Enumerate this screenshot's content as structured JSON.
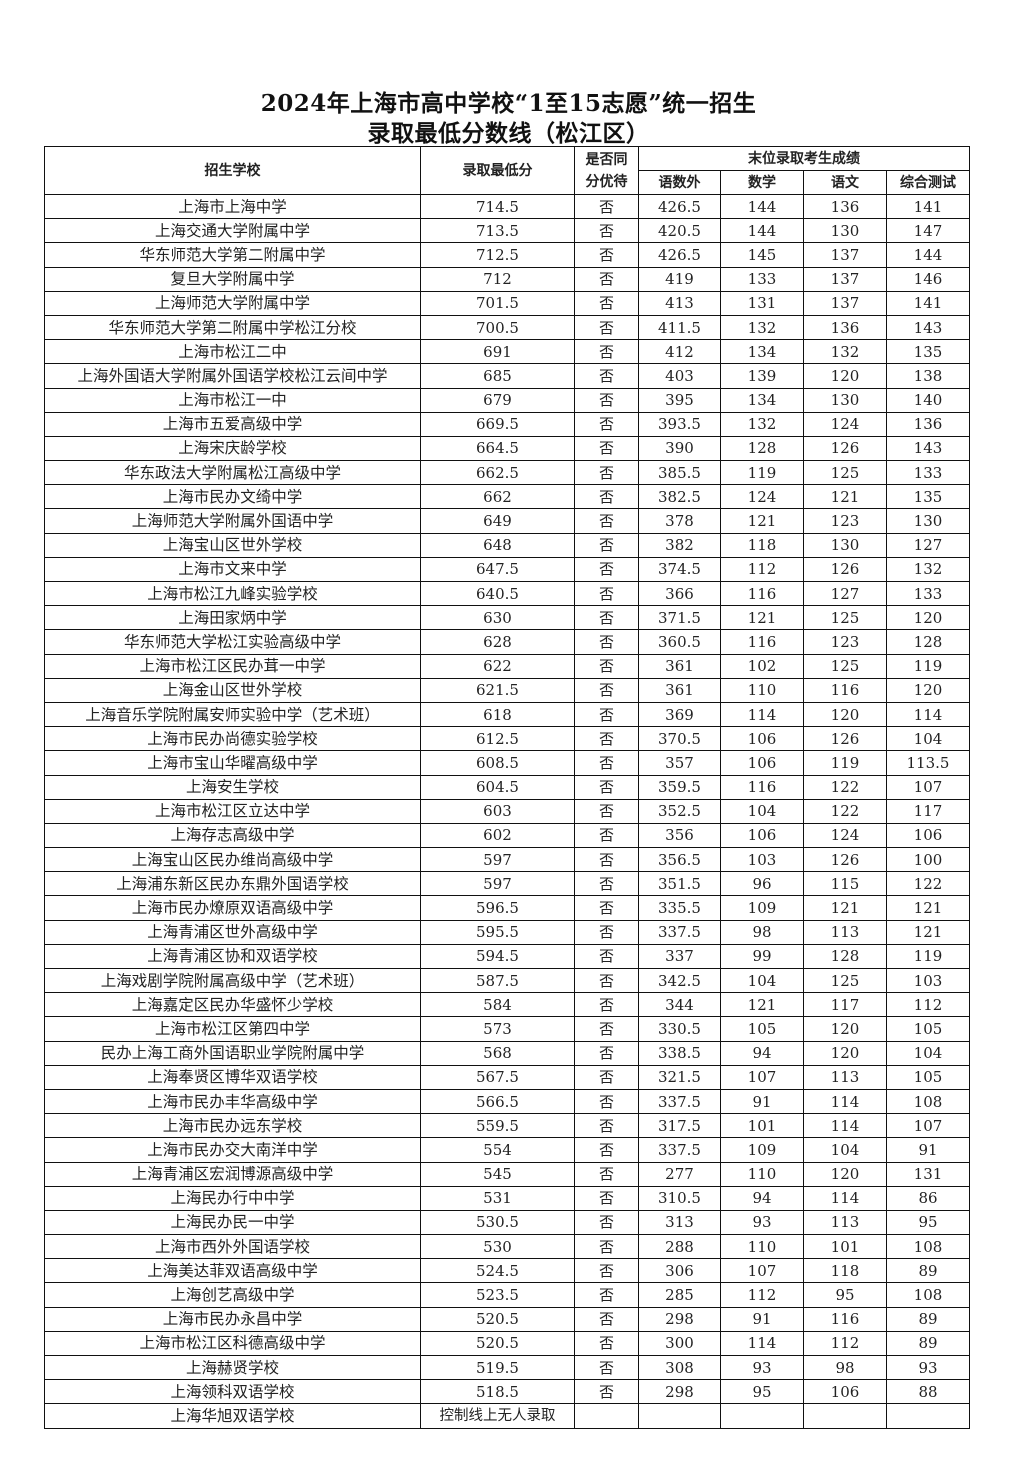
{
  "title": {
    "line1": "2024年上海市高中学校“1至15志愿”统一招生",
    "line2": "录取最低分数线（松江区）"
  },
  "table": {
    "headers": {
      "school": "招生学校",
      "min_score": "录取最低分",
      "tie_priority": "是否同分优待",
      "last_group": "末位录取考生成绩",
      "sub": [
        "语数外",
        "数学",
        "语文",
        "综合测试"
      ]
    },
    "rows": [
      [
        "上海市上海中学",
        "714.5",
        "否",
        "426.5",
        "144",
        "136",
        "141"
      ],
      [
        "上海交通大学附属中学",
        "713.5",
        "否",
        "420.5",
        "144",
        "130",
        "147"
      ],
      [
        "华东师范大学第二附属中学",
        "712.5",
        "否",
        "426.5",
        "145",
        "137",
        "144"
      ],
      [
        "复旦大学附属中学",
        "712",
        "否",
        "419",
        "133",
        "137",
        "146"
      ],
      [
        "上海师范大学附属中学",
        "701.5",
        "否",
        "413",
        "131",
        "137",
        "141"
      ],
      [
        "华东师范大学第二附属中学松江分校",
        "700.5",
        "否",
        "411.5",
        "132",
        "136",
        "143"
      ],
      [
        "上海市松江二中",
        "691",
        "否",
        "412",
        "134",
        "132",
        "135"
      ],
      [
        "上海外国语大学附属外国语学校松江云间中学",
        "685",
        "否",
        "403",
        "139",
        "120",
        "138"
      ],
      [
        "上海市松江一中",
        "679",
        "否",
        "395",
        "134",
        "130",
        "140"
      ],
      [
        "上海市五爱高级中学",
        "669.5",
        "否",
        "393.5",
        "132",
        "124",
        "136"
      ],
      [
        "上海宋庆龄学校",
        "664.5",
        "否",
        "390",
        "128",
        "126",
        "143"
      ],
      [
        "华东政法大学附属松江高级中学",
        "662.5",
        "否",
        "385.5",
        "119",
        "125",
        "133"
      ],
      [
        "上海市民办文绮中学",
        "662",
        "否",
        "382.5",
        "124",
        "121",
        "135"
      ],
      [
        "上海师范大学附属外国语中学",
        "649",
        "否",
        "378",
        "121",
        "123",
        "130"
      ],
      [
        "上海宝山区世外学校",
        "648",
        "否",
        "382",
        "118",
        "130",
        "127"
      ],
      [
        "上海市文来中学",
        "647.5",
        "否",
        "374.5",
        "112",
        "126",
        "132"
      ],
      [
        "上海市松江九峰实验学校",
        "640.5",
        "否",
        "366",
        "116",
        "127",
        "133"
      ],
      [
        "上海田家炳中学",
        "630",
        "否",
        "371.5",
        "121",
        "125",
        "120"
      ],
      [
        "华东师范大学松江实验高级中学",
        "628",
        "否",
        "360.5",
        "116",
        "123",
        "128"
      ],
      [
        "上海市松江区民办茸一中学",
        "622",
        "否",
        "361",
        "102",
        "125",
        "119"
      ],
      [
        "上海金山区世外学校",
        "621.5",
        "否",
        "361",
        "110",
        "116",
        "120"
      ],
      [
        "上海音乐学院附属安师实验中学（艺术班）",
        "618",
        "否",
        "369",
        "114",
        "120",
        "114"
      ],
      [
        "上海市民办尚德实验学校",
        "612.5",
        "否",
        "370.5",
        "106",
        "126",
        "104"
      ],
      [
        "上海市宝山华曜高级中学",
        "608.5",
        "否",
        "357",
        "106",
        "119",
        "113.5"
      ],
      [
        "上海安生学校",
        "604.5",
        "否",
        "359.5",
        "116",
        "122",
        "107"
      ],
      [
        "上海市松江区立达中学",
        "603",
        "否",
        "352.5",
        "104",
        "122",
        "117"
      ],
      [
        "上海存志高级中学",
        "602",
        "否",
        "356",
        "106",
        "124",
        "106"
      ],
      [
        "上海宝山区民办维尚高级中学",
        "597",
        "否",
        "356.5",
        "103",
        "126",
        "100"
      ],
      [
        "上海浦东新区民办东鼎外国语学校",
        "597",
        "否",
        "351.5",
        "96",
        "115",
        "122"
      ],
      [
        "上海市民办燎原双语高级中学",
        "596.5",
        "否",
        "335.5",
        "109",
        "121",
        "121"
      ],
      [
        "上海青浦区世外高级中学",
        "595.5",
        "否",
        "337.5",
        "98",
        "113",
        "121"
      ],
      [
        "上海青浦区协和双语学校",
        "594.5",
        "否",
        "337",
        "99",
        "128",
        "119"
      ],
      [
        "上海戏剧学院附属高级中学（艺术班）",
        "587.5",
        "否",
        "342.5",
        "104",
        "125",
        "103"
      ],
      [
        "上海嘉定区民办华盛怀少学校",
        "584",
        "否",
        "344",
        "121",
        "117",
        "112"
      ],
      [
        "上海市松江区第四中学",
        "573",
        "否",
        "330.5",
        "105",
        "120",
        "105"
      ],
      [
        "民办上海工商外国语职业学院附属中学",
        "568",
        "否",
        "338.5",
        "94",
        "120",
        "104"
      ],
      [
        "上海奉贤区博华双语学校",
        "567.5",
        "否",
        "321.5",
        "107",
        "113",
        "105"
      ],
      [
        "上海市民办丰华高级中学",
        "566.5",
        "否",
        "337.5",
        "91",
        "114",
        "108"
      ],
      [
        "上海市民办远东学校",
        "559.5",
        "否",
        "317.5",
        "101",
        "114",
        "107"
      ],
      [
        "上海市民办交大南洋中学",
        "554",
        "否",
        "337.5",
        "109",
        "104",
        "91"
      ],
      [
        "上海青浦区宏润博源高级中学",
        "545",
        "否",
        "277",
        "110",
        "120",
        "131"
      ],
      [
        "上海民办行中中学",
        "531",
        "否",
        "310.5",
        "94",
        "114",
        "86"
      ],
      [
        "上海民办民一中学",
        "530.5",
        "否",
        "313",
        "93",
        "113",
        "95"
      ],
      [
        "上海市西外外国语学校",
        "530",
        "否",
        "288",
        "110",
        "101",
        "108"
      ],
      [
        "上海美达菲双语高级中学",
        "524.5",
        "否",
        "306",
        "107",
        "118",
        "89"
      ],
      [
        "上海创艺高级中学",
        "523.5",
        "否",
        "285",
        "112",
        "95",
        "108"
      ],
      [
        "上海市民办永昌中学",
        "520.5",
        "否",
        "298",
        "91",
        "116",
        "89"
      ],
      [
        "上海市松江区科德高级中学",
        "520.5",
        "否",
        "300",
        "114",
        "112",
        "89"
      ],
      [
        "上海赫贤学校",
        "519.5",
        "否",
        "308",
        "93",
        "98",
        "93"
      ],
      [
        "上海领科双语学校",
        "518.5",
        "否",
        "298",
        "95",
        "106",
        "88"
      ],
      [
        "上海华旭双语学校",
        "控制线上无人录取",
        "",
        "",
        "",
        "",
        ""
      ]
    ]
  }
}
